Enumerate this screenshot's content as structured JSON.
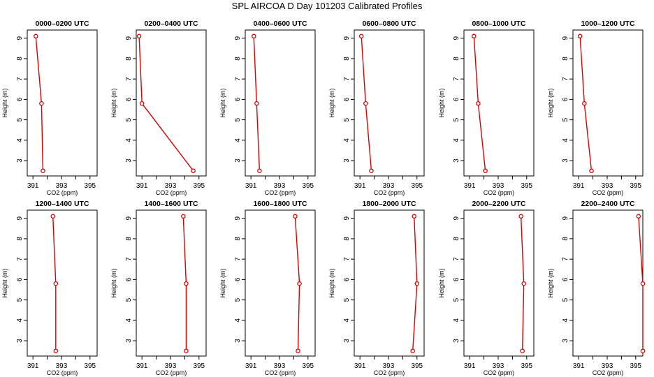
{
  "title": "SPL AIRCOA D  Day 101203  Calibrated Profiles",
  "colors": {
    "series": "#dd0000",
    "axis": "#000000",
    "background": "#ffffff"
  },
  "chart_data": [
    {
      "type": "line",
      "title": "0000–0200 UTC",
      "xlabel": "CO2 (ppm)",
      "ylabel": "Height (m)",
      "xlim": [
        390.6,
        395.5
      ],
      "ylim": [
        2.25,
        9.4
      ],
      "xticks": [
        391,
        393,
        395
      ],
      "yticks": [
        3,
        4,
        5,
        6,
        7,
        8,
        9
      ],
      "series": [
        {
          "x": [
            391.2,
            391.6,
            391.7
          ],
          "y": [
            9.1,
            5.8,
            2.5
          ]
        }
      ]
    },
    {
      "type": "line",
      "title": "0200–0400 UTC",
      "xlabel": "CO2 (ppm)",
      "ylabel": "Height (m)",
      "xlim": [
        390.6,
        395.5
      ],
      "ylim": [
        2.25,
        9.4
      ],
      "xticks": [
        391,
        393,
        395
      ],
      "yticks": [
        3,
        4,
        5,
        6,
        7,
        8,
        9
      ],
      "series": [
        {
          "x": [
            390.8,
            391.0,
            394.6
          ],
          "y": [
            9.1,
            5.8,
            2.5
          ]
        }
      ]
    },
    {
      "type": "line",
      "title": "0400–0600 UTC",
      "xlabel": "CO2 (ppm)",
      "ylabel": "Height (m)",
      "xlim": [
        390.6,
        395.5
      ],
      "ylim": [
        2.25,
        9.4
      ],
      "xticks": [
        391,
        393,
        395
      ],
      "yticks": [
        3,
        4,
        5,
        6,
        7,
        8,
        9
      ],
      "series": [
        {
          "x": [
            391.2,
            391.4,
            391.6
          ],
          "y": [
            9.1,
            5.8,
            2.5
          ]
        }
      ]
    },
    {
      "type": "line",
      "title": "0600–0800 UTC",
      "xlabel": "CO2 (ppm)",
      "ylabel": "Height (m)",
      "xlim": [
        390.6,
        395.5
      ],
      "ylim": [
        2.25,
        9.4
      ],
      "xticks": [
        391,
        393,
        395
      ],
      "yticks": [
        3,
        4,
        5,
        6,
        7,
        8,
        9
      ],
      "series": [
        {
          "x": [
            391.1,
            391.4,
            391.8
          ],
          "y": [
            9.1,
            5.8,
            2.5
          ]
        }
      ]
    },
    {
      "type": "line",
      "title": "0800–1000 UTC",
      "xlabel": "CO2 (ppm)",
      "ylabel": "Height (m)",
      "xlim": [
        390.6,
        395.5
      ],
      "ylim": [
        2.25,
        9.4
      ],
      "xticks": [
        391,
        393,
        395
      ],
      "yticks": [
        3,
        4,
        5,
        6,
        7,
        8,
        9
      ],
      "series": [
        {
          "x": [
            391.3,
            391.6,
            392.1
          ],
          "y": [
            9.1,
            5.8,
            2.5
          ]
        }
      ]
    },
    {
      "type": "line",
      "title": "1000–1200 UTC",
      "xlabel": "CO2 (ppm)",
      "ylabel": "Height (m)",
      "xlim": [
        390.6,
        395.5
      ],
      "ylim": [
        2.25,
        9.4
      ],
      "xticks": [
        391,
        393,
        395
      ],
      "yticks": [
        3,
        4,
        5,
        6,
        7,
        8,
        9
      ],
      "series": [
        {
          "x": [
            391.1,
            391.4,
            391.9
          ],
          "y": [
            9.1,
            5.8,
            2.5
          ]
        }
      ]
    },
    {
      "type": "line",
      "title": "1200–1400 UTC",
      "xlabel": "CO2 (ppm)",
      "ylabel": "Height (m)",
      "xlim": [
        390.6,
        395.5
      ],
      "ylim": [
        2.25,
        9.4
      ],
      "xticks": [
        391,
        393,
        395
      ],
      "yticks": [
        3,
        4,
        5,
        6,
        7,
        8,
        9
      ],
      "series": [
        {
          "x": [
            392.4,
            392.6,
            392.6
          ],
          "y": [
            9.1,
            5.8,
            2.5
          ]
        }
      ]
    },
    {
      "type": "line",
      "title": "1400–1600 UTC",
      "xlabel": "CO2 (ppm)",
      "ylabel": "Height (m)",
      "xlim": [
        390.6,
        395.5
      ],
      "ylim": [
        2.25,
        9.4
      ],
      "xticks": [
        391,
        393,
        395
      ],
      "yticks": [
        3,
        4,
        5,
        6,
        7,
        8,
        9
      ],
      "series": [
        {
          "x": [
            393.9,
            394.1,
            394.1
          ],
          "y": [
            9.1,
            5.8,
            2.5
          ]
        }
      ]
    },
    {
      "type": "line",
      "title": "1600–1800 UTC",
      "xlabel": "CO2 (ppm)",
      "ylabel": "Height (m)",
      "xlim": [
        390.6,
        395.5
      ],
      "ylim": [
        2.25,
        9.4
      ],
      "xticks": [
        391,
        393,
        395
      ],
      "yticks": [
        3,
        4,
        5,
        6,
        7,
        8,
        9
      ],
      "series": [
        {
          "x": [
            394.1,
            394.4,
            394.3
          ],
          "y": [
            9.1,
            5.8,
            2.5
          ]
        }
      ]
    },
    {
      "type": "line",
      "title": "1800–2000 UTC",
      "xlabel": "CO2 (ppm)",
      "ylabel": "Height (m)",
      "xlim": [
        390.6,
        395.5
      ],
      "ylim": [
        2.25,
        9.4
      ],
      "xticks": [
        391,
        393,
        395
      ],
      "yticks": [
        3,
        4,
        5,
        6,
        7,
        8,
        9
      ],
      "series": [
        {
          "x": [
            394.8,
            395.0,
            394.7
          ],
          "y": [
            9.1,
            5.8,
            2.5
          ]
        }
      ]
    },
    {
      "type": "line",
      "title": "2000–2200 UTC",
      "xlabel": "CO2 (ppm)",
      "ylabel": "Height (m)",
      "xlim": [
        390.6,
        395.5
      ],
      "ylim": [
        2.25,
        9.4
      ],
      "xticks": [
        391,
        393,
        395
      ],
      "yticks": [
        3,
        4,
        5,
        6,
        7,
        8,
        9
      ],
      "series": [
        {
          "x": [
            394.6,
            394.8,
            394.7
          ],
          "y": [
            9.1,
            5.8,
            2.5
          ]
        }
      ]
    },
    {
      "type": "line",
      "title": "2200–2400 UTC",
      "xlabel": "CO2 (ppm)",
      "ylabel": "Height (m)",
      "xlim": [
        390.6,
        395.5
      ],
      "ylim": [
        2.25,
        9.4
      ],
      "xticks": [
        391,
        393,
        395
      ],
      "yticks": [
        3,
        4,
        5,
        6,
        7,
        8,
        9
      ],
      "series": [
        {
          "x": [
            395.2,
            395.5,
            395.5
          ],
          "y": [
            9.1,
            5.8,
            2.5
          ]
        }
      ]
    }
  ]
}
